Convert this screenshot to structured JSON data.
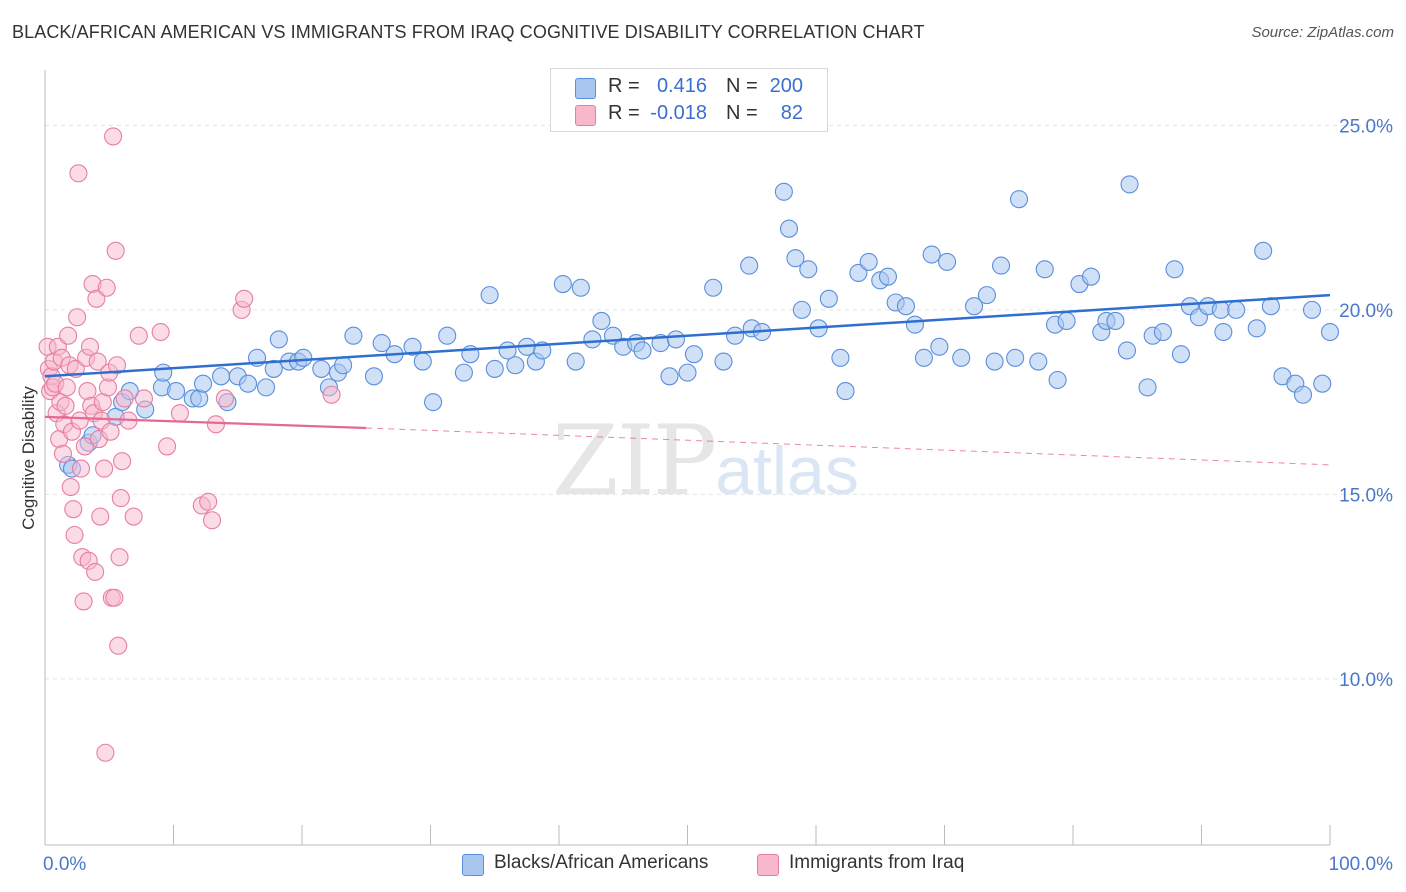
{
  "title": "BLACK/AFRICAN AMERICAN VS IMMIGRANTS FROM IRAQ COGNITIVE DISABILITY CORRELATION CHART",
  "source": "Source: ZipAtlas.com",
  "watermark": {
    "zip": "ZIP",
    "atlas": "atlas"
  },
  "legend": {
    "rows": [
      {
        "r_label": "R =",
        "r_value": "0.416",
        "n_label": "N =",
        "n_value": "200"
      },
      {
        "r_label": "R =",
        "r_value": "-0.018",
        "n_label": "N =",
        "n_value": "82"
      }
    ]
  },
  "bottom_legend": {
    "series1": "Blacks/African Americans",
    "series2": "Immigrants from Iraq"
  },
  "colors": {
    "blue_fill": "#a9c6ee",
    "blue_stroke": "#5a8fdc",
    "blue_line": "#2e6fcf",
    "pink_fill": "#f7b8cb",
    "pink_stroke": "#e77fa0",
    "pink_line": "#e36a92",
    "tick_text": "#4a78c8"
  },
  "chart_data": {
    "type": "scatter",
    "title": "BLACK/AFRICAN AMERICAN VS IMMIGRANTS FROM IRAQ COGNITIVE DISABILITY CORRELATION CHART",
    "xlabel": "",
    "ylabel": "Cognitive Disability",
    "xlim": [
      0,
      100
    ],
    "ylim": [
      5.5,
      26.5
    ],
    "x_tick_labels": [
      "0.0%",
      "100.0%"
    ],
    "y_ticks": [
      10,
      15,
      20,
      25
    ],
    "y_tick_labels": [
      "10.0%",
      "15.0%",
      "20.0%",
      "25.0%"
    ],
    "grid": true,
    "legend_position": "top-center",
    "series": [
      {
        "name": "Blacks/African Americans",
        "R": 0.416,
        "N": 200,
        "trend": {
          "x0": 0,
          "y0": 18.2,
          "x1": 100,
          "y1": 20.4
        },
        "points": [
          [
            1.8,
            15.8
          ],
          [
            2.1,
            15.7
          ],
          [
            3.4,
            16.4
          ],
          [
            3.7,
            16.6
          ],
          [
            5.5,
            17.1
          ],
          [
            6.0,
            17.5
          ],
          [
            6.6,
            17.8
          ],
          [
            7.8,
            17.3
          ],
          [
            9.1,
            17.9
          ],
          [
            9.2,
            18.3
          ],
          [
            10.2,
            17.8
          ],
          [
            11.5,
            17.6
          ],
          [
            12.0,
            17.6
          ],
          [
            12.3,
            18.0
          ],
          [
            13.7,
            18.2
          ],
          [
            14.2,
            17.5
          ],
          [
            15.0,
            18.2
          ],
          [
            15.8,
            18.0
          ],
          [
            16.5,
            18.7
          ],
          [
            17.2,
            17.9
          ],
          [
            17.8,
            18.4
          ],
          [
            18.2,
            19.2
          ],
          [
            19.0,
            18.6
          ],
          [
            19.7,
            18.6
          ],
          [
            20.1,
            18.7
          ],
          [
            21.5,
            18.4
          ],
          [
            22.1,
            17.9
          ],
          [
            22.8,
            18.3
          ],
          [
            23.2,
            18.5
          ],
          [
            24.0,
            19.3
          ],
          [
            25.6,
            18.2
          ],
          [
            26.2,
            19.1
          ],
          [
            27.2,
            18.8
          ],
          [
            28.6,
            19.0
          ],
          [
            29.4,
            18.6
          ],
          [
            30.2,
            17.5
          ],
          [
            31.3,
            19.3
          ],
          [
            32.6,
            18.3
          ],
          [
            33.1,
            18.8
          ],
          [
            34.6,
            20.4
          ],
          [
            35.0,
            18.4
          ],
          [
            36.0,
            18.9
          ],
          [
            36.6,
            18.5
          ],
          [
            37.5,
            19.0
          ],
          [
            38.2,
            18.6
          ],
          [
            38.7,
            18.9
          ],
          [
            40.3,
            20.7
          ],
          [
            41.3,
            18.6
          ],
          [
            41.7,
            20.6
          ],
          [
            42.6,
            19.2
          ],
          [
            43.3,
            19.7
          ],
          [
            44.2,
            19.3
          ],
          [
            45.0,
            19.0
          ],
          [
            46.0,
            19.1
          ],
          [
            46.5,
            18.9
          ],
          [
            47.9,
            19.1
          ],
          [
            48.6,
            18.2
          ],
          [
            49.1,
            19.2
          ],
          [
            50.0,
            18.3
          ],
          [
            50.5,
            18.8
          ],
          [
            52.0,
            20.6
          ],
          [
            52.8,
            18.6
          ],
          [
            53.7,
            19.3
          ],
          [
            54.8,
            21.2
          ],
          [
            55.0,
            19.5
          ],
          [
            55.8,
            19.4
          ],
          [
            57.5,
            23.2
          ],
          [
            57.9,
            22.2
          ],
          [
            58.4,
            21.4
          ],
          [
            58.9,
            20.0
          ],
          [
            59.4,
            21.1
          ],
          [
            60.2,
            19.5
          ],
          [
            61.0,
            20.3
          ],
          [
            61.9,
            18.7
          ],
          [
            62.3,
            17.8
          ],
          [
            63.3,
            21.0
          ],
          [
            64.1,
            21.3
          ],
          [
            65.0,
            20.8
          ],
          [
            65.6,
            20.9
          ],
          [
            66.2,
            20.2
          ],
          [
            67.0,
            20.1
          ],
          [
            67.7,
            19.6
          ],
          [
            68.4,
            18.7
          ],
          [
            69.0,
            21.5
          ],
          [
            69.6,
            19.0
          ],
          [
            70.2,
            21.3
          ],
          [
            71.3,
            18.7
          ],
          [
            72.3,
            20.1
          ],
          [
            73.3,
            20.4
          ],
          [
            73.9,
            18.6
          ],
          [
            74.4,
            21.2
          ],
          [
            75.5,
            18.7
          ],
          [
            75.8,
            23.0
          ],
          [
            77.3,
            18.6
          ],
          [
            77.8,
            21.1
          ],
          [
            78.6,
            19.6
          ],
          [
            78.8,
            18.1
          ],
          [
            79.5,
            19.7
          ],
          [
            80.5,
            20.7
          ],
          [
            81.4,
            20.9
          ],
          [
            82.2,
            19.4
          ],
          [
            82.6,
            19.7
          ],
          [
            83.3,
            19.7
          ],
          [
            84.2,
            18.9
          ],
          [
            84.4,
            23.4
          ],
          [
            85.8,
            17.9
          ],
          [
            86.2,
            19.3
          ],
          [
            87.0,
            19.4
          ],
          [
            87.9,
            21.1
          ],
          [
            88.4,
            18.8
          ],
          [
            89.1,
            20.1
          ],
          [
            89.8,
            19.8
          ],
          [
            90.5,
            20.1
          ],
          [
            91.5,
            20.0
          ],
          [
            91.7,
            19.4
          ],
          [
            92.7,
            20.0
          ],
          [
            94.3,
            19.5
          ],
          [
            94.8,
            21.6
          ],
          [
            95.4,
            20.1
          ],
          [
            96.3,
            18.2
          ],
          [
            97.3,
            18.0
          ],
          [
            97.9,
            17.7
          ],
          [
            98.6,
            20.0
          ],
          [
            99.4,
            18.0
          ],
          [
            100.0,
            19.4
          ]
        ]
      },
      {
        "name": "Immigrants from Iraq",
        "R": -0.018,
        "N": 82,
        "trend": {
          "x0": 0,
          "y0": 17.1,
          "x1": 25,
          "y1": 16.8,
          "dashed_to_x": 100,
          "dashed_to_y": 15.8
        },
        "points": [
          [
            0.2,
            19.0
          ],
          [
            0.3,
            18.4
          ],
          [
            0.4,
            17.8
          ],
          [
            0.5,
            18.2
          ],
          [
            0.6,
            17.9
          ],
          [
            0.7,
            18.6
          ],
          [
            0.8,
            18.0
          ],
          [
            0.9,
            17.2
          ],
          [
            1.0,
            19.0
          ],
          [
            1.1,
            16.5
          ],
          [
            1.2,
            17.5
          ],
          [
            1.3,
            18.7
          ],
          [
            1.4,
            16.1
          ],
          [
            1.5,
            16.9
          ],
          [
            1.6,
            17.4
          ],
          [
            1.7,
            17.9
          ],
          [
            1.8,
            19.3
          ],
          [
            1.9,
            18.5
          ],
          [
            2.0,
            15.2
          ],
          [
            2.1,
            16.7
          ],
          [
            2.2,
            14.6
          ],
          [
            2.3,
            13.9
          ],
          [
            2.4,
            18.4
          ],
          [
            2.5,
            19.8
          ],
          [
            2.6,
            23.7
          ],
          [
            2.7,
            17.0
          ],
          [
            2.8,
            15.7
          ],
          [
            2.9,
            13.3
          ],
          [
            3.0,
            12.1
          ],
          [
            3.1,
            16.3
          ],
          [
            3.2,
            18.7
          ],
          [
            3.3,
            17.8
          ],
          [
            3.4,
            13.2
          ],
          [
            3.5,
            19.0
          ],
          [
            3.6,
            17.4
          ],
          [
            3.7,
            20.7
          ],
          [
            3.8,
            17.2
          ],
          [
            3.9,
            12.9
          ],
          [
            4.0,
            20.3
          ],
          [
            4.1,
            18.6
          ],
          [
            4.2,
            16.5
          ],
          [
            4.3,
            14.4
          ],
          [
            4.4,
            17.0
          ],
          [
            4.5,
            17.5
          ],
          [
            4.6,
            15.7
          ],
          [
            4.7,
            8.0
          ],
          [
            4.8,
            20.6
          ],
          [
            4.9,
            17.9
          ],
          [
            5.0,
            18.3
          ],
          [
            5.1,
            16.7
          ],
          [
            5.2,
            12.2
          ],
          [
            5.3,
            24.7
          ],
          [
            5.4,
            12.2
          ],
          [
            5.5,
            21.6
          ],
          [
            5.6,
            18.5
          ],
          [
            5.7,
            10.9
          ],
          [
            5.8,
            13.3
          ],
          [
            5.9,
            14.9
          ],
          [
            6.0,
            15.9
          ],
          [
            6.2,
            17.6
          ],
          [
            6.5,
            17.0
          ],
          [
            6.9,
            14.4
          ],
          [
            7.3,
            19.3
          ],
          [
            7.7,
            17.6
          ],
          [
            9.0,
            19.4
          ],
          [
            9.5,
            16.3
          ],
          [
            10.5,
            17.2
          ],
          [
            12.2,
            14.7
          ],
          [
            12.7,
            14.8
          ],
          [
            13.0,
            14.3
          ],
          [
            13.3,
            16.9
          ],
          [
            14.0,
            17.6
          ],
          [
            15.3,
            20.0
          ],
          [
            15.5,
            20.3
          ],
          [
            22.3,
            17.7
          ]
        ]
      }
    ]
  }
}
